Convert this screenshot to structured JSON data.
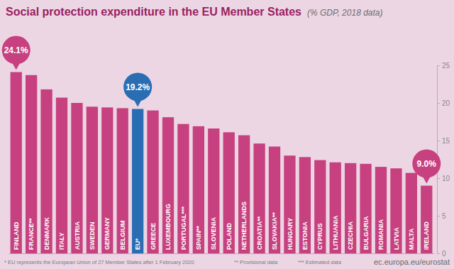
{
  "chart_data": {
    "type": "bar",
    "title": "Social protection expenditure in the EU Member States",
    "subtitle": "(% GDP, 2018 data)",
    "categories": [
      "FINLAND",
      "FRANCE**",
      "DENMARK",
      "ITALY",
      "AUSTRIA",
      "SWEDEN",
      "GERMANY",
      "BELGIUM",
      "EU*",
      "GREECE",
      "LUXEMBOURG",
      "PORTUGAL***",
      "SPAIN**",
      "SLOVENIA",
      "POLAND",
      "NETHERLANDS",
      "CROATIA**",
      "SLOVAKIA**",
      "HUNGARY",
      "ESTONIA",
      "CYPRUS",
      "LITHUANIA",
      "CZECHIA",
      "BULGARIA",
      "ROMANIA",
      "LATVIA",
      "MALTA",
      "IRELAND"
    ],
    "values": [
      24.1,
      23.7,
      21.8,
      20.7,
      20.0,
      19.5,
      19.4,
      19.3,
      19.2,
      19.0,
      18.1,
      17.2,
      16.9,
      16.6,
      16.1,
      15.7,
      14.6,
      14.2,
      13.0,
      12.8,
      12.4,
      12.1,
      12.0,
      11.9,
      11.5,
      11.3,
      10.7,
      9.0
    ],
    "colors": [
      "#c7407f",
      "#c7407f",
      "#c7407f",
      "#c7407f",
      "#c7407f",
      "#c7407f",
      "#c7407f",
      "#c7407f",
      "#2b6db3",
      "#c7407f",
      "#c7407f",
      "#c7407f",
      "#c7407f",
      "#c7407f",
      "#c7407f",
      "#c7407f",
      "#c7407f",
      "#c7407f",
      "#c7407f",
      "#c7407f",
      "#c7407f",
      "#c7407f",
      "#c7407f",
      "#c7407f",
      "#c7407f",
      "#c7407f",
      "#c7407f",
      "#c7407f"
    ],
    "ylim": [
      0,
      25
    ],
    "yticks": [
      0,
      5,
      10,
      15,
      20,
      25
    ],
    "grid": false,
    "annotations": [
      {
        "text": "24.1%",
        "value": 24.1,
        "category": "FINLAND",
        "color": "#c7407f"
      },
      {
        "text": "19.2%",
        "value": 19.2,
        "category": "EU*",
        "color": "#2b6db3"
      },
      {
        "text": "9.0%",
        "value": 9.0,
        "category": "IRELAND",
        "color": "#c7407f"
      }
    ],
    "footnotes": [
      "* EU represents the European Union of 27 Member States after 1 February 2020",
      "** Provisional data",
      "*** Estimated data"
    ],
    "source": "ec.europa.eu/eurostat"
  }
}
